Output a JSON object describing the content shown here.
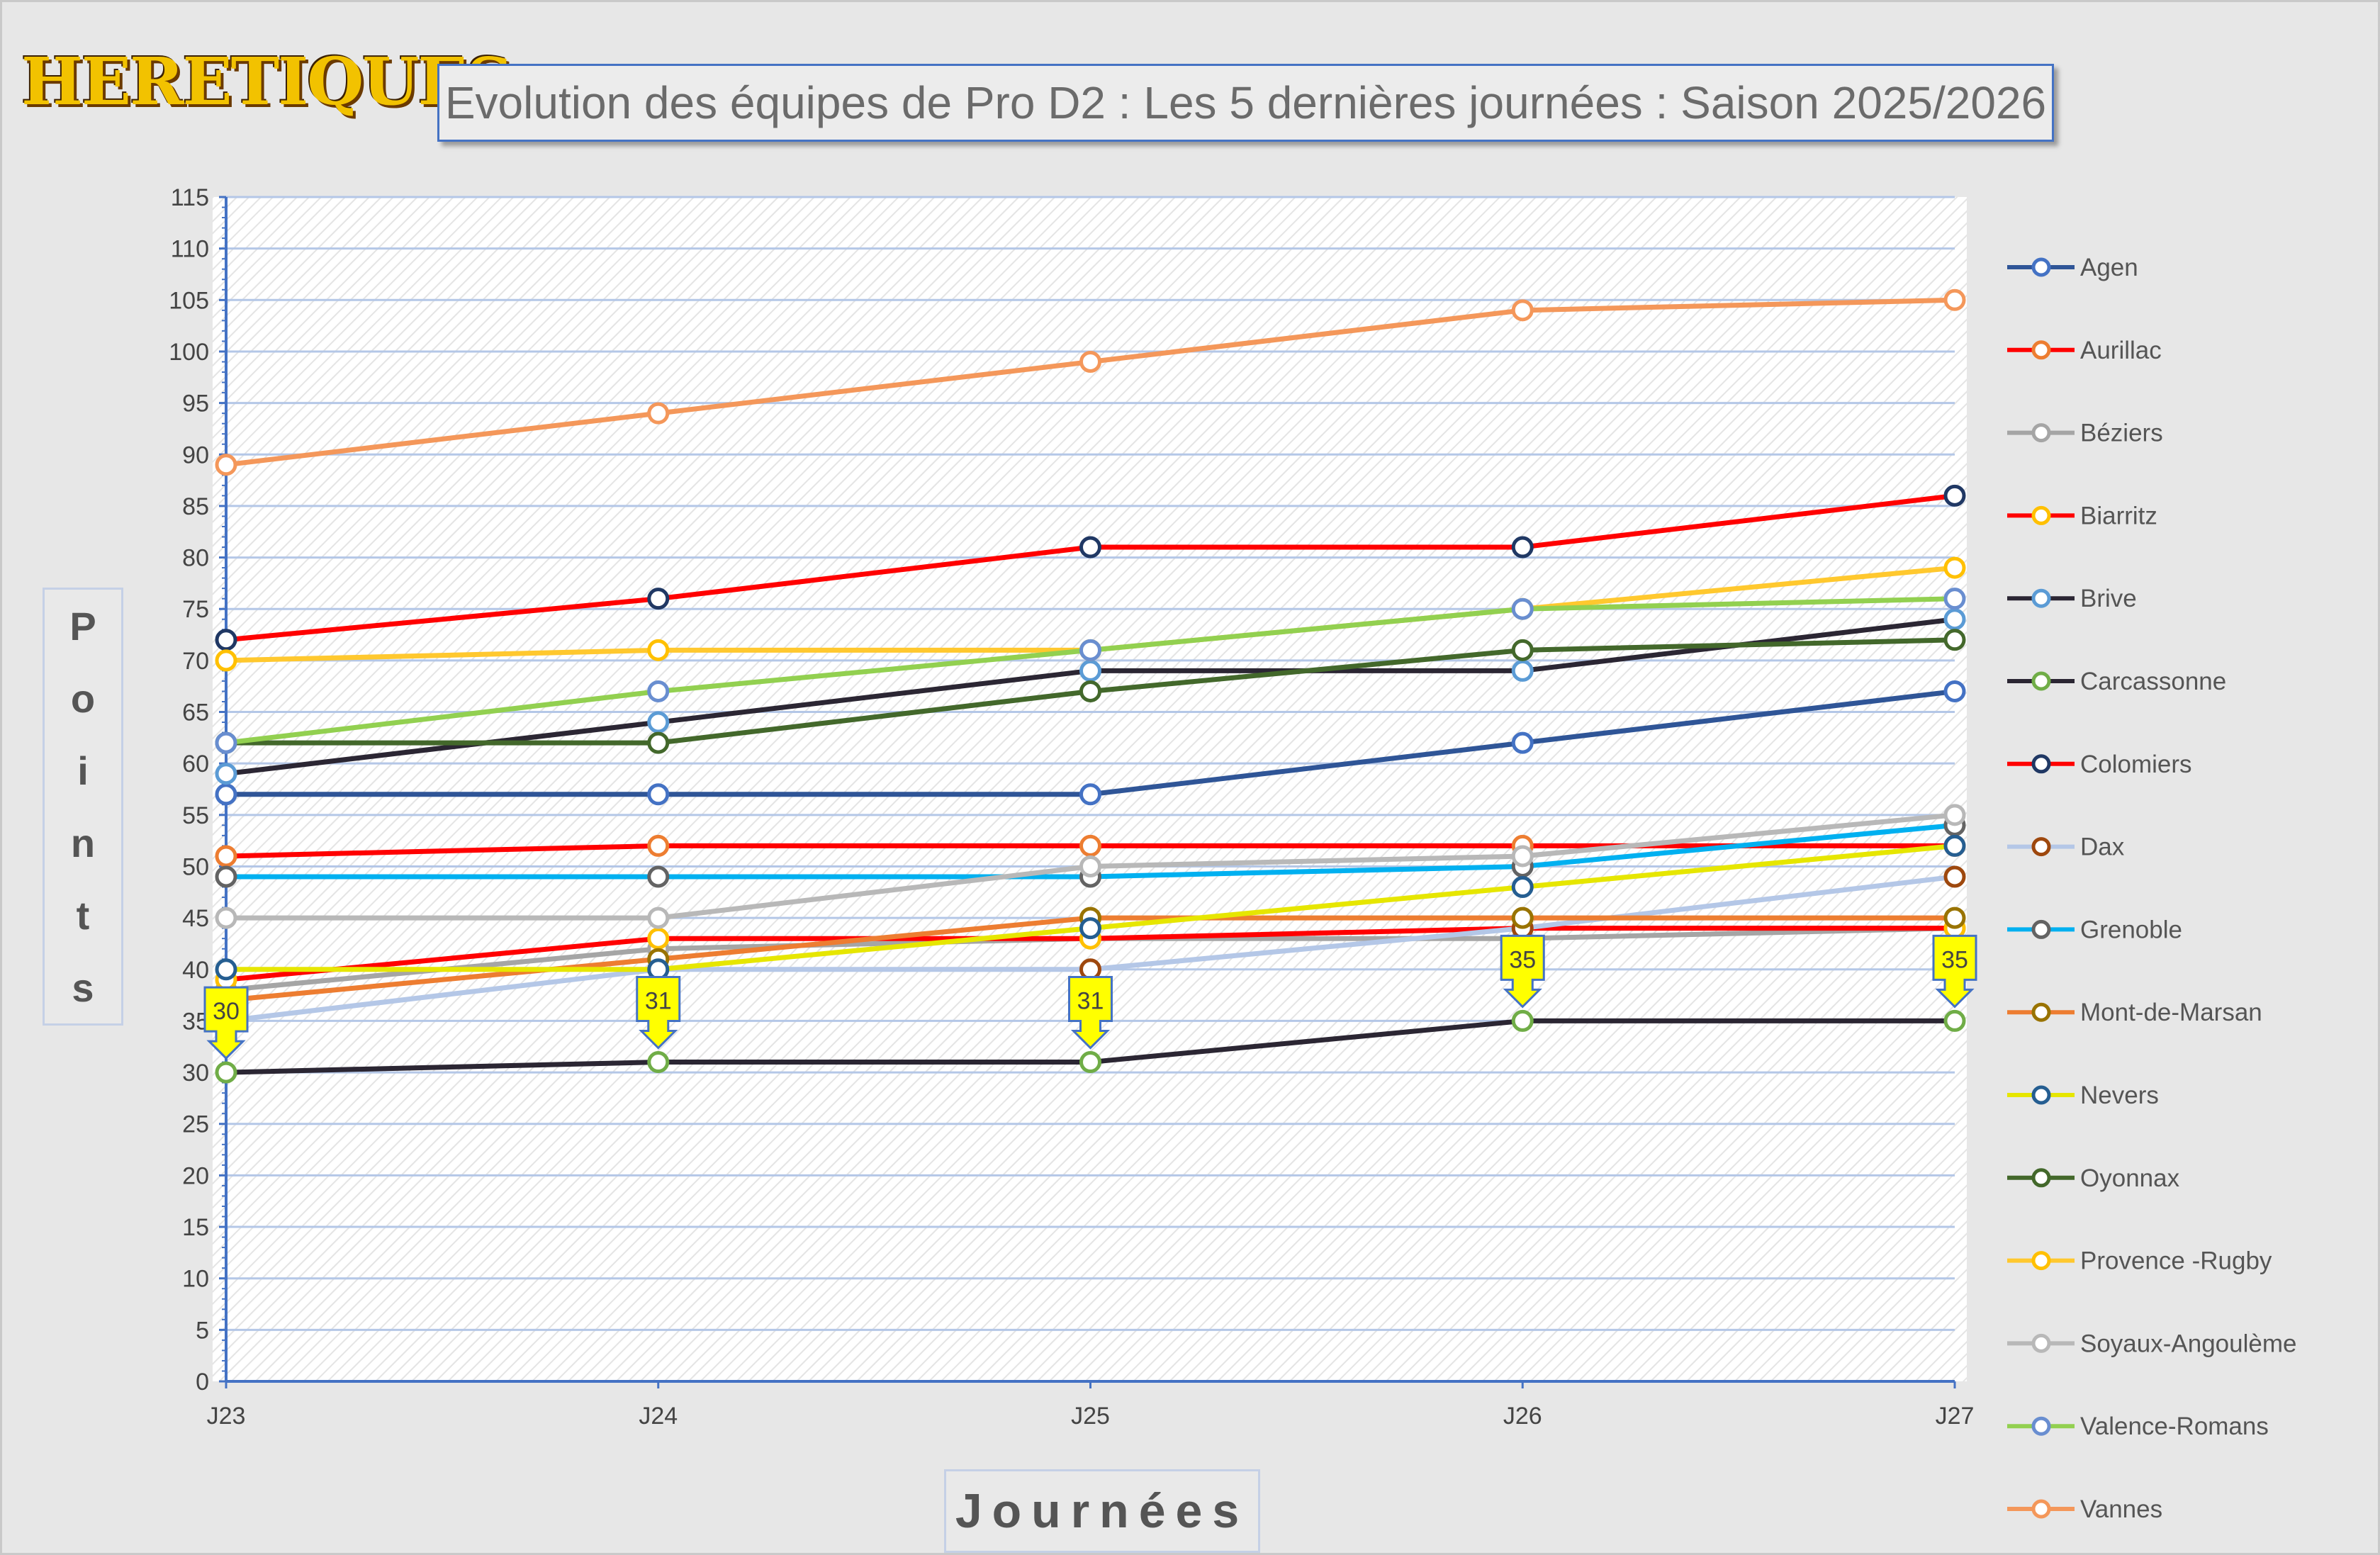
{
  "logo_text": "HERETIQUES",
  "chart_data": {
    "type": "line",
    "title": "Evolution des équipes de Pro D2 : Les 5 dernières journées : Saison 2025/2026",
    "xlabel": "Journées",
    "ylabel": "Points",
    "categories": [
      "J23",
      "J24",
      "J25",
      "J26",
      "J27"
    ],
    "ylim": [
      0,
      115
    ],
    "ytick_step": 5,
    "grid": true,
    "legend": "right",
    "series": [
      {
        "name": "Agen",
        "line_color": "#2f5597",
        "marker_color": "#4472c4",
        "values": [
          57,
          57,
          57,
          62,
          67
        ]
      },
      {
        "name": "Aurillac",
        "line_color": "#ff0000",
        "marker_color": "#ed7d31",
        "values": [
          51,
          52,
          52,
          52,
          52
        ]
      },
      {
        "name": "Béziers",
        "line_color": "#a5a5a5",
        "marker_color": "#a5a5a5",
        "values": [
          38,
          42,
          43,
          43,
          44
        ]
      },
      {
        "name": "Biarritz",
        "line_color": "#ff0000",
        "marker_color": "#ffc000",
        "values": [
          39,
          43,
          43,
          44,
          44
        ]
      },
      {
        "name": "Brive",
        "line_color": "#2b2633",
        "marker_color": "#5b9bd5",
        "values": [
          59,
          64,
          69,
          69,
          74
        ]
      },
      {
        "name": "Carcassonne",
        "line_color": "#2b2633",
        "marker_color": "#70ad47",
        "values": [
          30,
          31,
          31,
          35,
          35
        ]
      },
      {
        "name": "Colomiers",
        "line_color": "#ff0000",
        "marker_color": "#203864",
        "values": [
          72,
          76,
          81,
          81,
          86
        ]
      },
      {
        "name": "Dax",
        "line_color": "#b4c7e7",
        "marker_color": "#9e480e",
        "values": [
          35,
          40,
          40,
          44,
          49
        ]
      },
      {
        "name": "Grenoble",
        "line_color": "#00b0f0",
        "marker_color": "#636363",
        "values": [
          49,
          49,
          49,
          50,
          54
        ]
      },
      {
        "name": "Mont-de-Marsan",
        "line_color": "#ed7d31",
        "marker_color": "#997300",
        "values": [
          37,
          41,
          45,
          45,
          45
        ]
      },
      {
        "name": "Nevers",
        "line_color": "#e6e600",
        "marker_color": "#255e91",
        "values": [
          40,
          40,
          44,
          48,
          52
        ]
      },
      {
        "name": "Oyonnax",
        "line_color": "#43682b",
        "marker_color": "#43682b",
        "values": [
          62,
          62,
          67,
          71,
          72
        ]
      },
      {
        "name": "Provence -Rugby",
        "line_color": "#ffc82e",
        "marker_color": "#ffc000",
        "values": [
          70,
          71,
          71,
          75,
          79
        ]
      },
      {
        "name": "Soyaux-Angoulème",
        "line_color": "#b8b8b8",
        "marker_color": "#b8b8b8",
        "values": [
          45,
          45,
          50,
          51,
          55
        ]
      },
      {
        "name": "Valence-Romans",
        "line_color": "#92d050",
        "marker_color": "#698ed0",
        "values": [
          62,
          67,
          71,
          75,
          76
        ]
      },
      {
        "name": "Vannes",
        "line_color": "#f4975a",
        "marker_color": "#f4975a",
        "values": [
          89,
          94,
          99,
          104,
          105
        ]
      }
    ],
    "callouts": {
      "series": "Carcassonne",
      "labels": [
        "30",
        "31",
        "31",
        "35",
        "35"
      ],
      "color": "#ffff00"
    }
  }
}
